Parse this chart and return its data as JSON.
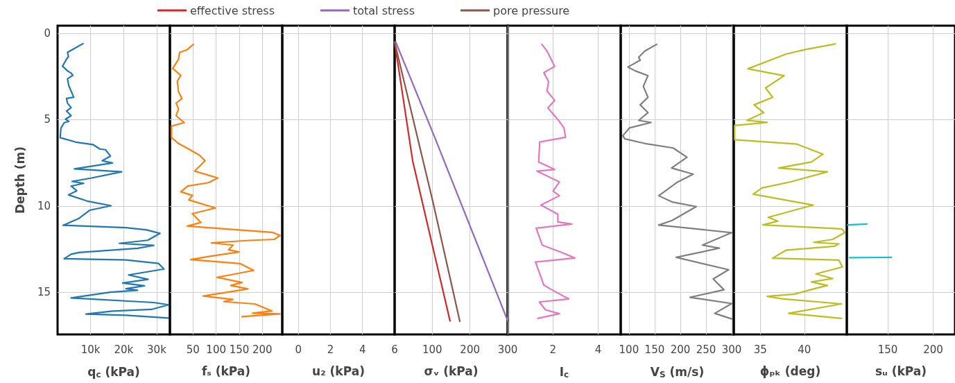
{
  "chart_data": [
    {
      "type": "line",
      "xlabel": "q$_{c}$ (kPa)",
      "ylabel": "Depth (m)",
      "xlim": [
        0,
        34000
      ],
      "xticks": [
        {
          "value": 10000,
          "label": "10k"
        },
        {
          "value": 20000,
          "label": "20k"
        },
        {
          "value": 30000,
          "label": "30k"
        }
      ],
      "ylim": [
        17.45,
        -0.45
      ],
      "yticks": [
        0,
        5,
        10,
        15
      ],
      "grid": true,
      "series": [
        {
          "color": "#1f77b4",
          "x": [
            7700,
            5500,
            3000,
            3300,
            2700,
            1500,
            3000,
            4100,
            4600,
            3000,
            3400,
            4900,
            2700,
            3000,
            4100,
            2700,
            4100,
            2400,
            3400,
            2000,
            1000,
            800,
            5500,
            10700,
            12800,
            14500,
            16000,
            13500,
            16600,
            5100,
            19400,
            10300,
            4400,
            7900,
            4100,
            5800,
            3300,
            9000,
            16200,
            9700,
            6500,
            4800,
            1700,
            20700,
            27000,
            31000,
            27300,
            18700,
            29100,
            24200,
            6500,
            4100,
            2000,
            20700,
            30500,
            32200,
            21500,
            27400,
            19700,
            26300,
            20700,
            24200,
            16000,
            4100,
            29100,
            33600,
            28400,
            16600,
            8600,
            20700,
            33600
          ],
          "values": [
            0.59,
            0.83,
            1.1,
            1.34,
            1.5,
            1.9,
            2.17,
            2.3,
            2.43,
            2.63,
            3.03,
            3.7,
            3.77,
            4.04,
            4.3,
            4.5,
            4.77,
            4.97,
            5.1,
            5.17,
            5.5,
            6.04,
            6.3,
            6.44,
            6.7,
            6.74,
            7.11,
            7.38,
            7.51,
            7.85,
            8.02,
            8.38,
            8.58,
            8.69,
            8.85,
            9.12,
            9.36,
            9.72,
            9.99,
            10.25,
            10.72,
            10.86,
            11.12,
            11.26,
            11.39,
            11.59,
            11.99,
            12.17,
            12.29,
            12.46,
            12.7,
            12.8,
            13.06,
            13.13,
            13.33,
            13.66,
            14.0,
            14.26,
            14.47,
            14.63,
            14.8,
            14.89,
            15.0,
            15.33,
            15.6,
            15.73,
            16.0,
            16.1,
            16.27,
            16.34,
            16.5
          ]
        }
      ]
    },
    {
      "type": "line",
      "xlabel": "fₛ (kPa)",
      "tick_labels": "x",
      "xlim": [
        0,
        243
      ],
      "xticks": [
        50,
        100,
        150,
        200
      ],
      "ylim": [
        17.45,
        -0.45
      ],
      "yticks": [
        0,
        5,
        10,
        15
      ],
      "grid": true,
      "series": [
        {
          "color": "#ff7f0e",
          "x": [
            51,
            36,
            21,
            18.5,
            6,
            23.5,
            16,
            18.5,
            26,
            13.5,
            18.5,
            13.5,
            31,
            3.5,
            3.5,
            18.5,
            41,
            63.5,
            76,
            53.5,
            103.5,
            83.5,
            38.5,
            23.5,
            48.5,
            41,
            98.5,
            48.5,
            67,
            37.6,
            220.8,
            238,
            225.7,
            171,
            89.6,
            136.6,
            126.7,
            149,
            82,
            45,
            151.5,
            181,
            102,
            156,
            131.7,
            168.8,
            72,
            136.6,
            116.8,
            183.6,
            220.8,
            178.7,
            238,
            156
          ],
          "values": [
            0.63,
            0.96,
            1.1,
            1.5,
            2.03,
            2.43,
            2.77,
            3.37,
            3.77,
            4.04,
            4.37,
            4.77,
            5.17,
            5.37,
            6.04,
            6.38,
            6.71,
            7.05,
            7.38,
            7.98,
            8.38,
            8.65,
            8.85,
            9.18,
            9.39,
            9.65,
            10.12,
            10.45,
            10.96,
            11.17,
            11.53,
            11.71,
            11.94,
            12.0,
            12.14,
            12.27,
            12.54,
            12.67,
            12.94,
            13.11,
            13.34,
            13.74,
            14.14,
            14.44,
            14.61,
            14.81,
            15.22,
            15.42,
            15.55,
            15.68,
            16.09,
            16.22,
            16.26,
            16.42
          ]
        }
      ]
    },
    {
      "type": "line",
      "xlabel": "u₂ (kPa)",
      "tick_labels": "x",
      "xlim": [
        -1,
        6
      ],
      "xticks": [
        0,
        2,
        4,
        6
      ],
      "ylim": [
        17.45,
        -0.45
      ],
      "yticks": [
        0,
        5,
        10,
        15
      ],
      "grid": true
    },
    {
      "type": "line",
      "xlabel": "σᵥ (kPa)",
      "tick_labels": "x",
      "xlim": [
        0,
        300
      ],
      "xticks": [
        100,
        200,
        300
      ],
      "ylim": [
        17.45,
        -0.45
      ],
      "yticks": [
        0,
        5,
        10,
        15
      ],
      "grid": true,
      "legend": "top",
      "series": [
        {
          "name": "effective stress",
          "color": "#d62728",
          "x": [
            0,
            48,
            147
          ],
          "values": [
            0.5,
            7.4,
            16.67
          ]
        },
        {
          "name": "total stress",
          "color": "#9467bd",
          "x": [
            3,
            106,
            300
          ],
          "values": [
            0.5,
            6.0,
            16.65
          ]
        },
        {
          "name": "pore pressure",
          "color": "#8c564b",
          "x": [
            0,
            102,
            173
          ],
          "values": [
            0.5,
            9.8,
            16.69
          ]
        }
      ]
    },
    {
      "type": "line",
      "xlabel": "I$_{c}$",
      "tick_labels": "x",
      "xlim": [
        0,
        5
      ],
      "xticks": [
        2,
        4
      ],
      "ylim": [
        17.45,
        -0.45
      ],
      "yticks": [
        0,
        5,
        10,
        15
      ],
      "grid": true,
      "series": [
        {
          "color": "#e377c2",
          "x": [
            1.51,
            1.74,
            2.08,
            1.6,
            1.81,
            1.74,
            2.08,
            1.78,
            2.25,
            2.49,
            2.56,
            1.42,
            1.37,
            2.08,
            1.29,
            2.29,
            2.01,
            2.29,
            1.47,
            2.22,
            2.22,
            2.84,
            1.26,
            1.53,
            2.42,
            2.97,
            1.23,
            1.6,
            1.95,
            2.7,
            1.4,
            1.67,
            2.29,
            1.33
          ],
          "values": [
            0.63,
            1.02,
            1.91,
            2.27,
            2.8,
            3.34,
            3.88,
            4.32,
            5.04,
            5.48,
            6.02,
            6.29,
            7.45,
            7.89,
            7.98,
            8.61,
            9.14,
            9.41,
            9.95,
            10.48,
            10.93,
            11.05,
            11.29,
            12.27,
            12.71,
            13.02,
            13.25,
            14.59,
            14.86,
            15.39,
            15.57,
            16.02,
            16.25,
            16.52
          ]
        }
      ]
    },
    {
      "type": "line",
      "xlabel": "V$_{S}$ (m/s)",
      "tick_labels": "x",
      "xlim": [
        84,
        304
      ],
      "xticks": [
        100,
        150,
        200,
        250,
        300
      ],
      "ylim": [
        17.45,
        -0.45
      ],
      "yticks": [
        0,
        5,
        10,
        15
      ],
      "grid": true,
      "series": [
        {
          "color": "#7f7f7f",
          "x": [
            154,
            131,
            119,
            122,
            98,
            113,
            137,
            128,
            137,
            122,
            137,
            119,
            143,
            101,
            88,
            92,
            131,
            186,
            213,
            183,
            225,
            195,
            158,
            184,
            231,
            184,
            158,
            300,
            243,
            276,
            192,
            294,
            264,
            285,
            219,
            300,
            267,
            300
          ],
          "values": [
            0.63,
            1.02,
            1.38,
            1.55,
            1.95,
            2.18,
            2.45,
            3.07,
            3.7,
            4.14,
            4.59,
            5.04,
            5.16,
            5.48,
            5.93,
            6.11,
            6.38,
            6.64,
            7.18,
            7.8,
            8.16,
            8.61,
            9.41,
            9.77,
            10.04,
            10.84,
            11.11,
            11.55,
            12.27,
            12.45,
            12.98,
            13.7,
            14.23,
            14.86,
            15.3,
            15.66,
            16.23,
            16.55
          ]
        }
      ]
    },
    {
      "type": "line",
      "xlabel": "ϕₚₖ (deg)",
      "tick_labels": "x",
      "xlim": [
        32,
        44.8
      ],
      "xticks": [
        35,
        40
      ],
      "ylim": [
        17.45,
        -0.45
      ],
      "yticks": [
        0,
        5,
        10,
        15
      ],
      "grid": true,
      "series": [
        {
          "color": "#bcbd22",
          "x": [
            43.5,
            40.1,
            37.9,
            33.6,
            37.7,
            35.6,
            36.4,
            34.3,
            35.4,
            33.5,
            35.8,
            32.1,
            32.1,
            39.1,
            42.1,
            40.8,
            37.1,
            42.6,
            38.4,
            35.2,
            34.2,
            41.0,
            35.9,
            37.0,
            35.3,
            44.2,
            44.6,
            43.2,
            41.05,
            43.9,
            43.4,
            37.9,
            36.4,
            43.9,
            44.3,
            41.3,
            43.2,
            40.8,
            42.6,
            41.05,
            38.9,
            35.8,
            37.4,
            44.2,
            38.2,
            44.2
          ],
          "values": [
            0.61,
            0.93,
            1.2,
            2.05,
            2.45,
            3.16,
            3.7,
            4.14,
            4.59,
            5.04,
            5.16,
            5.34,
            6.16,
            6.41,
            7.0,
            7.45,
            7.8,
            8.02,
            8.61,
            8.96,
            9.32,
            9.95,
            10.66,
            10.88,
            11.1,
            11.33,
            11.54,
            11.94,
            12.11,
            12.2,
            12.34,
            12.57,
            13.03,
            13.14,
            13.54,
            13.94,
            14.21,
            14.41,
            14.61,
            14.81,
            15.11,
            15.24,
            15.38,
            15.68,
            16.23,
            16.52
          ]
        }
      ]
    },
    {
      "type": "line",
      "xlabel": "sᵤ (kPa)",
      "tick_labels": "x",
      "xlim": [
        105,
        224
      ],
      "xticks": [
        150,
        200
      ],
      "ylim": [
        17.45,
        -0.45
      ],
      "yticks": [
        0,
        5,
        10,
        15
      ],
      "grid": true,
      "series": [
        {
          "color": "#17becf",
          "x": [
            106,
            127,
            null,
            108,
            154
          ],
          "values": [
            11.1,
            11.05,
            null,
            13.0,
            12.98
          ]
        }
      ]
    }
  ]
}
